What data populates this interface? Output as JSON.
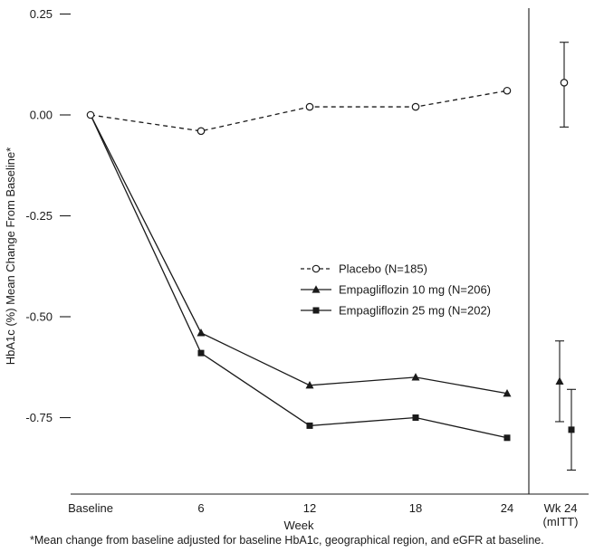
{
  "footnote": "*Mean change from baseline adjusted for baseline HbA1c, geographical region, and eGFR at baseline.",
  "chart_data": {
    "type": "line",
    "title": "",
    "xlabel": "Week",
    "ylabel": "HbA1c (%) Mean Change From Baseline*",
    "categories": [
      "Baseline",
      "6",
      "12",
      "18",
      "24"
    ],
    "ylim": [
      -0.94,
      0.25
    ],
    "yticks": [
      0.25,
      0,
      -0.25,
      -0.5,
      -0.75
    ],
    "ytick_labels": [
      "0.25",
      "0.00",
      "-0.25",
      "-0.50",
      "-0.75"
    ],
    "grid": false,
    "legend_position": "inside-right-middle",
    "right_panel_label": [
      "Wk 24",
      "(mITT)"
    ],
    "ink_color": "#1a1a1a",
    "series": [
      {
        "name": "Placebo (N=185)",
        "marker": "open-circle",
        "line_style": "dashed",
        "values": [
          0.0,
          -0.04,
          0.02,
          0.02,
          0.06
        ],
        "week24_mitt": {
          "mean": 0.08,
          "ci_upper": 0.18,
          "ci_lower": -0.03
        }
      },
      {
        "name": "Empagliflozin 10 mg (N=206)",
        "marker": "filled-triangle",
        "line_style": "solid",
        "values": [
          0.0,
          -0.54,
          -0.67,
          -0.65,
          -0.69
        ],
        "week24_mitt": {
          "mean": -0.66,
          "ci_upper": -0.56,
          "ci_lower": -0.76
        }
      },
      {
        "name": "Empagliflozin 25 mg (N=202)",
        "marker": "filled-square",
        "line_style": "solid",
        "values": [
          0.0,
          -0.59,
          -0.77,
          -0.75,
          -0.8
        ],
        "week24_mitt": {
          "mean": -0.78,
          "ci_upper": -0.68,
          "ci_lower": -0.88
        }
      }
    ]
  }
}
